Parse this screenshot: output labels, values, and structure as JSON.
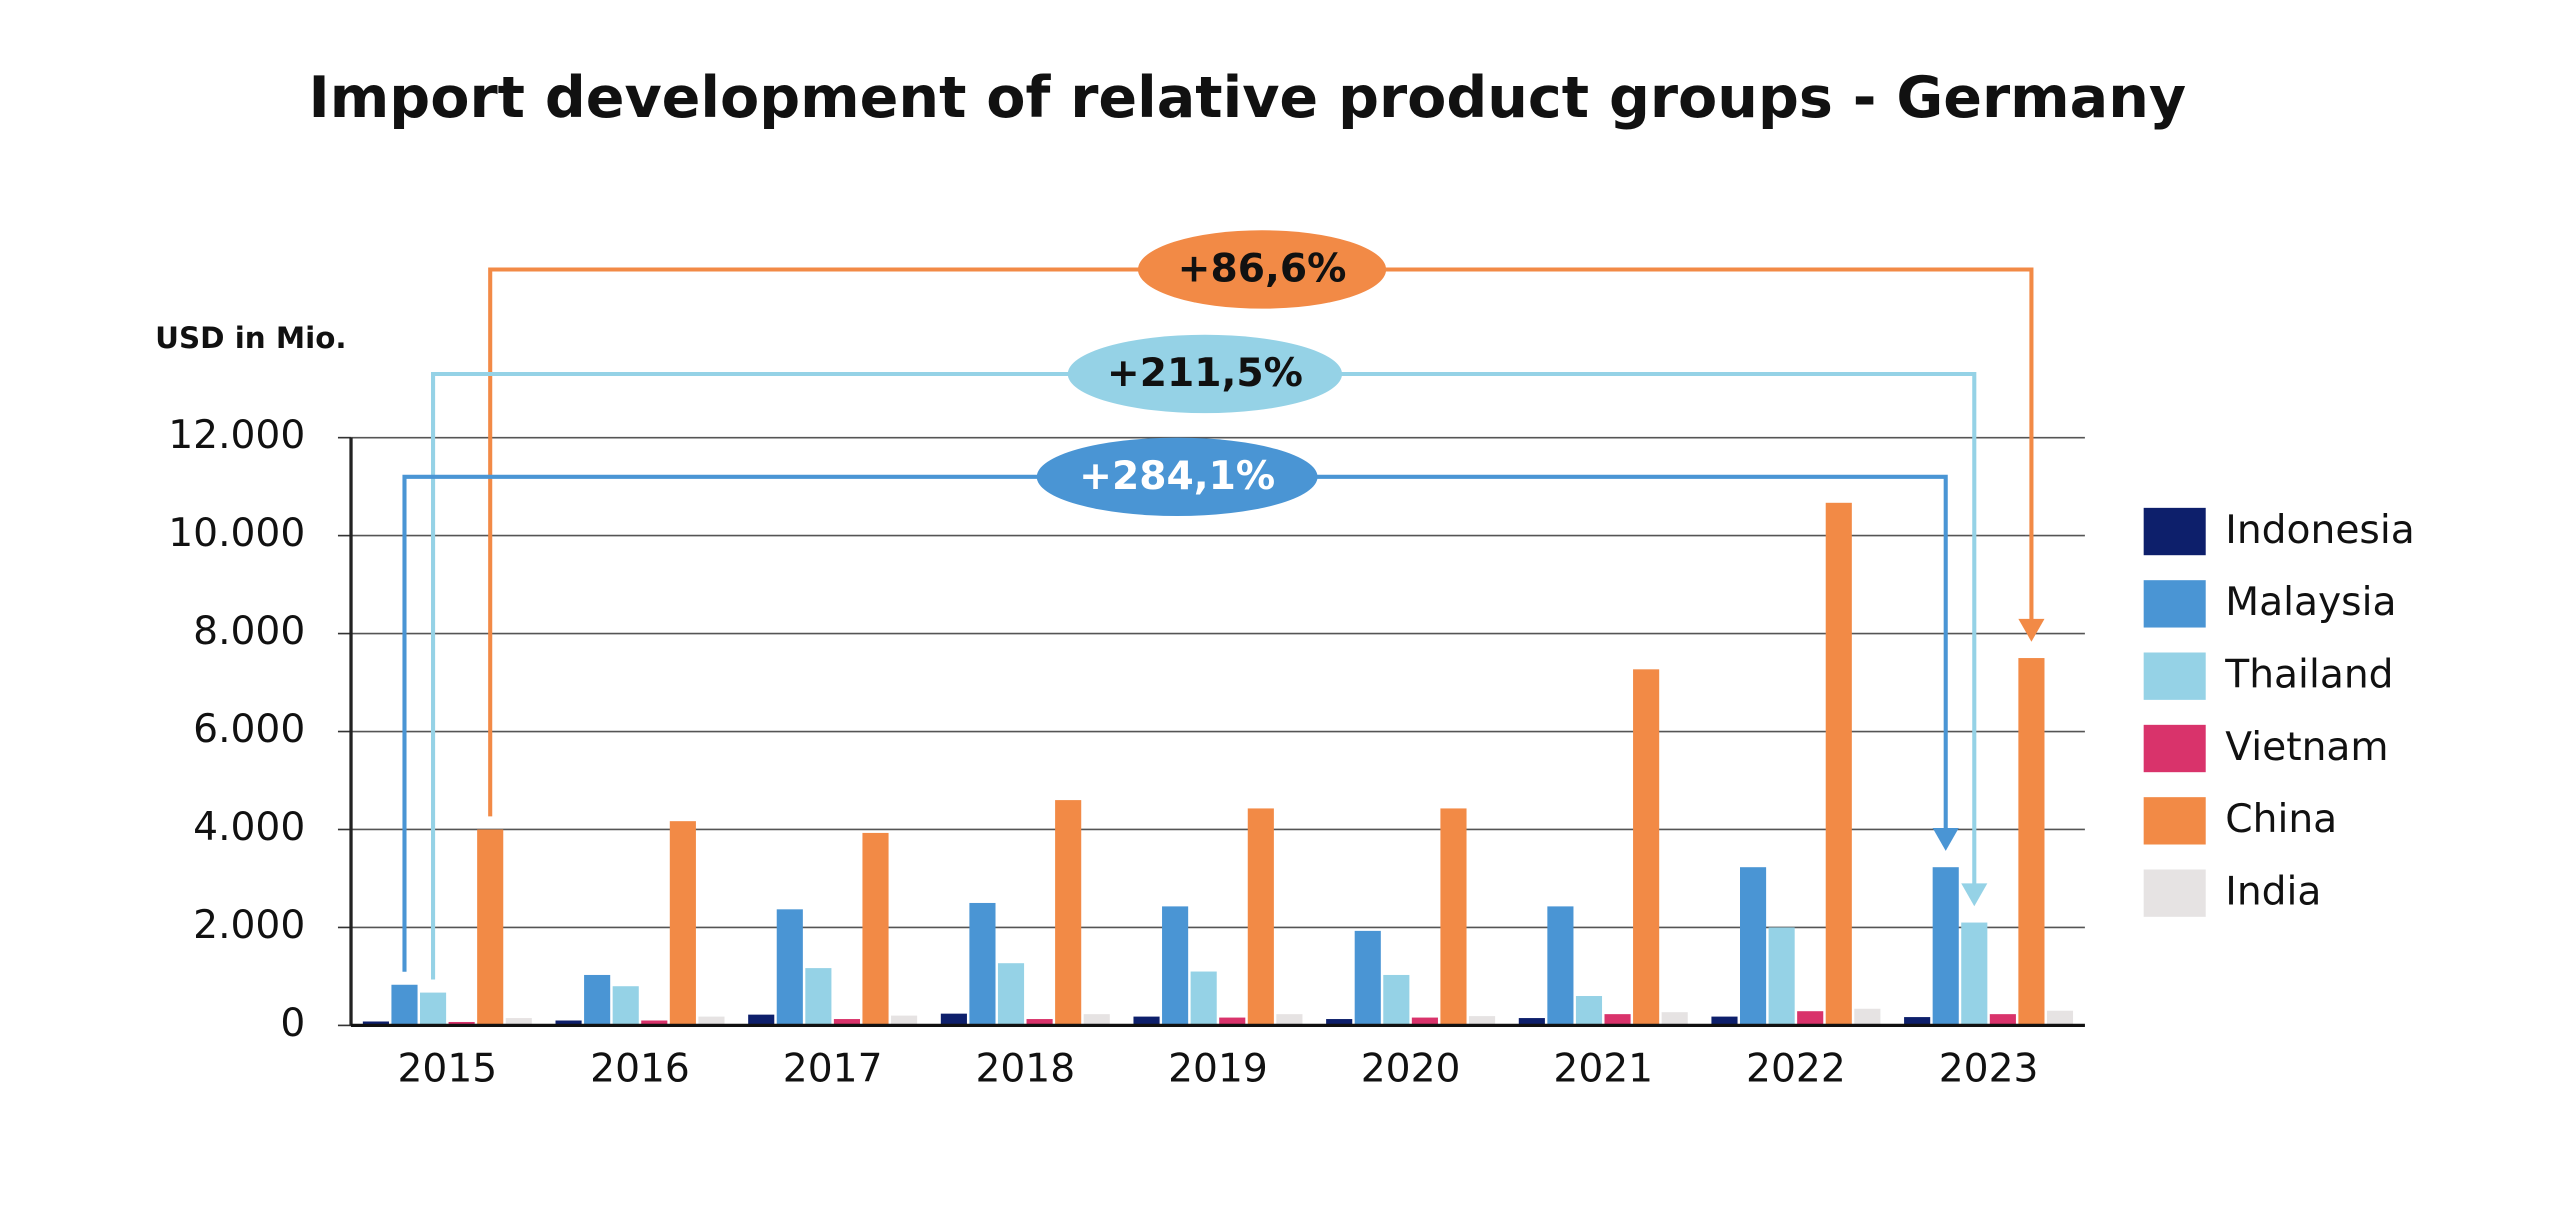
{
  "chart_data": {
    "type": "bar",
    "title": "Import development of relative product groups - Germany",
    "y_axis_label": "USD in Mio.",
    "categories": [
      "2015",
      "2016",
      "2017",
      "2018",
      "2019",
      "2020",
      "2021",
      "2022",
      "2023"
    ],
    "series": [
      {
        "name": "Indonesia",
        "color": "#0d1f6b",
        "values": [
          80,
          100,
          220,
          240,
          180,
          130,
          150,
          180,
          170
        ]
      },
      {
        "name": "Malaysia",
        "color": "#4a95d4",
        "values": [
          830,
          1030,
          2370,
          2500,
          2430,
          1930,
          2430,
          3230,
          3230
        ]
      },
      {
        "name": "Thailand",
        "color": "#95d2e6",
        "values": [
          670,
          800,
          1170,
          1270,
          1100,
          1030,
          600,
          2000,
          2100
        ]
      },
      {
        "name": "Vietnam",
        "color": "#d9336b",
        "values": [
          70,
          100,
          130,
          130,
          160,
          160,
          230,
          290,
          230
        ]
      },
      {
        "name": "China",
        "color": "#f28a46",
        "values": [
          4000,
          4170,
          3930,
          4600,
          4430,
          4430,
          7270,
          10670,
          7500
        ]
      },
      {
        "name": "India",
        "color": "#e6e3e3",
        "values": [
          150,
          180,
          200,
          230,
          230,
          190,
          270,
          340,
          300
        ]
      }
    ],
    "ylim": [
      0,
      12000
    ],
    "yticks": [
      0,
      {
        "value": 2000,
        "label": "2.000"
      },
      {
        "value": 4000,
        "label": "4.000"
      },
      {
        "value": 6000,
        "label": "6.000"
      },
      {
        "value": 8000,
        "label": "8.000"
      },
      {
        "value": 10000,
        "label": "10.000"
      },
      {
        "value": 12000,
        "label": "12.000"
      }
    ],
    "grid": true,
    "legend": "right",
    "annotations": [
      "+86,6%",
      "+211,5%",
      "+284,1%"
    ]
  }
}
